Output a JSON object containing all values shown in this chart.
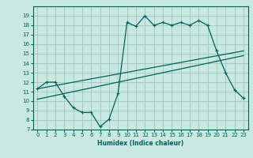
{
  "bg_color": "#c8e8e0",
  "grid_color": "#a0c8c0",
  "line_color": "#006060",
  "xlabel": "Humidex (Indice chaleur)",
  "xlim": [
    -0.5,
    23.5
  ],
  "ylim": [
    7,
    20
  ],
  "xticks": [
    0,
    1,
    2,
    3,
    4,
    5,
    6,
    7,
    8,
    9,
    10,
    11,
    12,
    13,
    14,
    15,
    16,
    17,
    18,
    19,
    20,
    21,
    22,
    23
  ],
  "yticks": [
    7,
    8,
    9,
    10,
    11,
    12,
    13,
    14,
    15,
    16,
    17,
    18,
    19
  ],
  "series1_x": [
    0,
    1,
    2,
    3,
    4,
    5,
    6,
    7,
    8,
    9,
    10,
    11,
    12,
    13,
    14,
    15,
    16,
    17,
    18,
    19,
    20,
    21,
    22,
    23
  ],
  "series1_y": [
    11.3,
    12.0,
    12.0,
    10.5,
    9.3,
    8.8,
    8.8,
    7.3,
    8.1,
    10.8,
    18.3,
    17.9,
    19.0,
    18.0,
    18.3,
    18.0,
    18.3,
    18.0,
    18.5,
    18.0,
    15.3,
    13.0,
    11.2,
    10.3
  ],
  "series2_x": [
    0,
    23
  ],
  "series2_y": [
    11.3,
    15.3
  ],
  "series3_x": [
    0,
    23
  ],
  "series3_y": [
    10.2,
    14.8
  ]
}
